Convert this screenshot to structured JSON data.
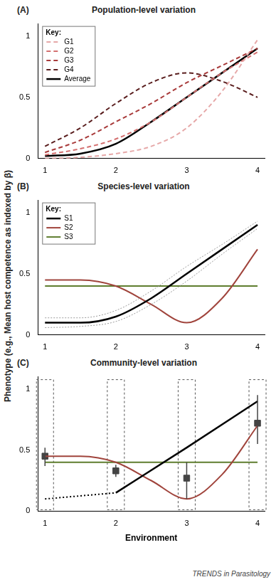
{
  "ylabel": "Phenotype (e.g., Mean host competence as indexed by β)",
  "footer": "TRENDS in Parasitology",
  "chart_data": [
    {
      "type": "line",
      "label": "(A)",
      "title": "Population-level variation",
      "legend": "top-left",
      "legend_title": "Key:",
      "grid": false,
      "x": [
        1,
        1.5,
        2,
        2.5,
        3,
        3.5,
        4
      ],
      "xlim": [
        0.9,
        4.1
      ],
      "xticks": [
        1,
        2,
        3,
        4
      ],
      "ylim": [
        0,
        1.1
      ],
      "yticks": [
        0,
        0.5,
        1
      ],
      "series": [
        {
          "name": "G1",
          "color": "#e6a8a8",
          "line_style": "dashed",
          "values": [
            0,
            0.01,
            0.04,
            0.1,
            0.25,
            0.55,
            0.97
          ]
        },
        {
          "name": "G2",
          "color": "#d47070",
          "line_style": "dashed",
          "values": [
            0.03,
            0.08,
            0.16,
            0.3,
            0.5,
            0.7,
            0.87
          ]
        },
        {
          "name": "G3",
          "color": "#a83a3a",
          "line_style": "dashed",
          "values": [
            0.05,
            0.15,
            0.3,
            0.45,
            0.62,
            0.76,
            0.9
          ]
        },
        {
          "name": "G4",
          "color": "#5a1e1e",
          "line_style": "dashed",
          "values": [
            0.1,
            0.25,
            0.45,
            0.62,
            0.7,
            0.63,
            0.5
          ]
        },
        {
          "name": "Average",
          "color": "#000000",
          "line_style": "solid",
          "values": [
            0.02,
            0.04,
            0.12,
            0.3,
            0.5,
            0.7,
            0.9
          ]
        }
      ]
    },
    {
      "type": "line",
      "label": "(B)",
      "title": "Species-level variation",
      "legend": "top-left",
      "legend_title": "Key:",
      "grid": false,
      "x": [
        1,
        1.5,
        2,
        2.5,
        3,
        3.5,
        4
      ],
      "xlim": [
        0.9,
        4.1
      ],
      "xticks": [
        1,
        2,
        3,
        4
      ],
      "ylim": [
        0,
        1.1
      ],
      "yticks": [
        0,
        0.5,
        1
      ],
      "series": [
        {
          "name": "S1",
          "color": "#000000",
          "line_style": "solid",
          "values": [
            0.1,
            0.1,
            0.15,
            0.3,
            0.5,
            0.7,
            0.9
          ],
          "band_lower": [
            0.06,
            0.07,
            0.11,
            0.25,
            0.44,
            0.66,
            0.87
          ],
          "band_upper": [
            0.14,
            0.14,
            0.2,
            0.36,
            0.56,
            0.74,
            0.93
          ]
        },
        {
          "name": "S2",
          "color": "#a0443c",
          "line_style": "solid",
          "values": [
            0.45,
            0.45,
            0.4,
            0.25,
            0.1,
            0.3,
            0.7
          ]
        },
        {
          "name": "S3",
          "color": "#5e7d2e",
          "line_style": "solid",
          "values": [
            0.4,
            0.4,
            0.4,
            0.4,
            0.4,
            0.4,
            0.4
          ]
        }
      ]
    },
    {
      "type": "line",
      "label": "(C)",
      "title": "Community-level variation",
      "x_label": "Environment",
      "grid": false,
      "x": [
        1,
        1.5,
        2,
        2.5,
        3,
        3.5,
        4
      ],
      "xlim": [
        0.9,
        4.1
      ],
      "xticks": [
        1,
        2,
        3,
        4
      ],
      "ylim": [
        0,
        1.1
      ],
      "yticks": [
        0,
        0.5,
        1
      ],
      "series": [
        {
          "name": "S1",
          "color": "#000000",
          "line_style": "dotted",
          "x": [
            1,
            2
          ],
          "values": [
            0.1,
            0.15
          ]
        },
        {
          "name": "S1",
          "color": "#000000",
          "line_style": "solid",
          "x": [
            2,
            3,
            4
          ],
          "values": [
            0.15,
            0.52,
            0.9
          ]
        },
        {
          "name": "S2",
          "color": "#a0443c",
          "line_style": "solid",
          "values": [
            0.45,
            0.45,
            0.4,
            0.25,
            0.1,
            0.3,
            0.7
          ]
        },
        {
          "name": "S3",
          "color": "#5e7d2e",
          "line_style": "solid",
          "values": [
            0.4,
            0.4,
            0.4,
            0.4,
            0.4,
            0.4,
            0.4
          ]
        },
        {
          "type": "scatter",
          "marker": "square",
          "color": "#444444",
          "x": [
            1,
            2,
            3,
            4
          ],
          "values": [
            0.45,
            0.33,
            0.27,
            0.72
          ],
          "error_low": [
            0.37,
            0.28,
            0.1,
            0.55
          ],
          "error_high": [
            0.52,
            0.38,
            0.4,
            0.95
          ]
        }
      ]
    }
  ]
}
